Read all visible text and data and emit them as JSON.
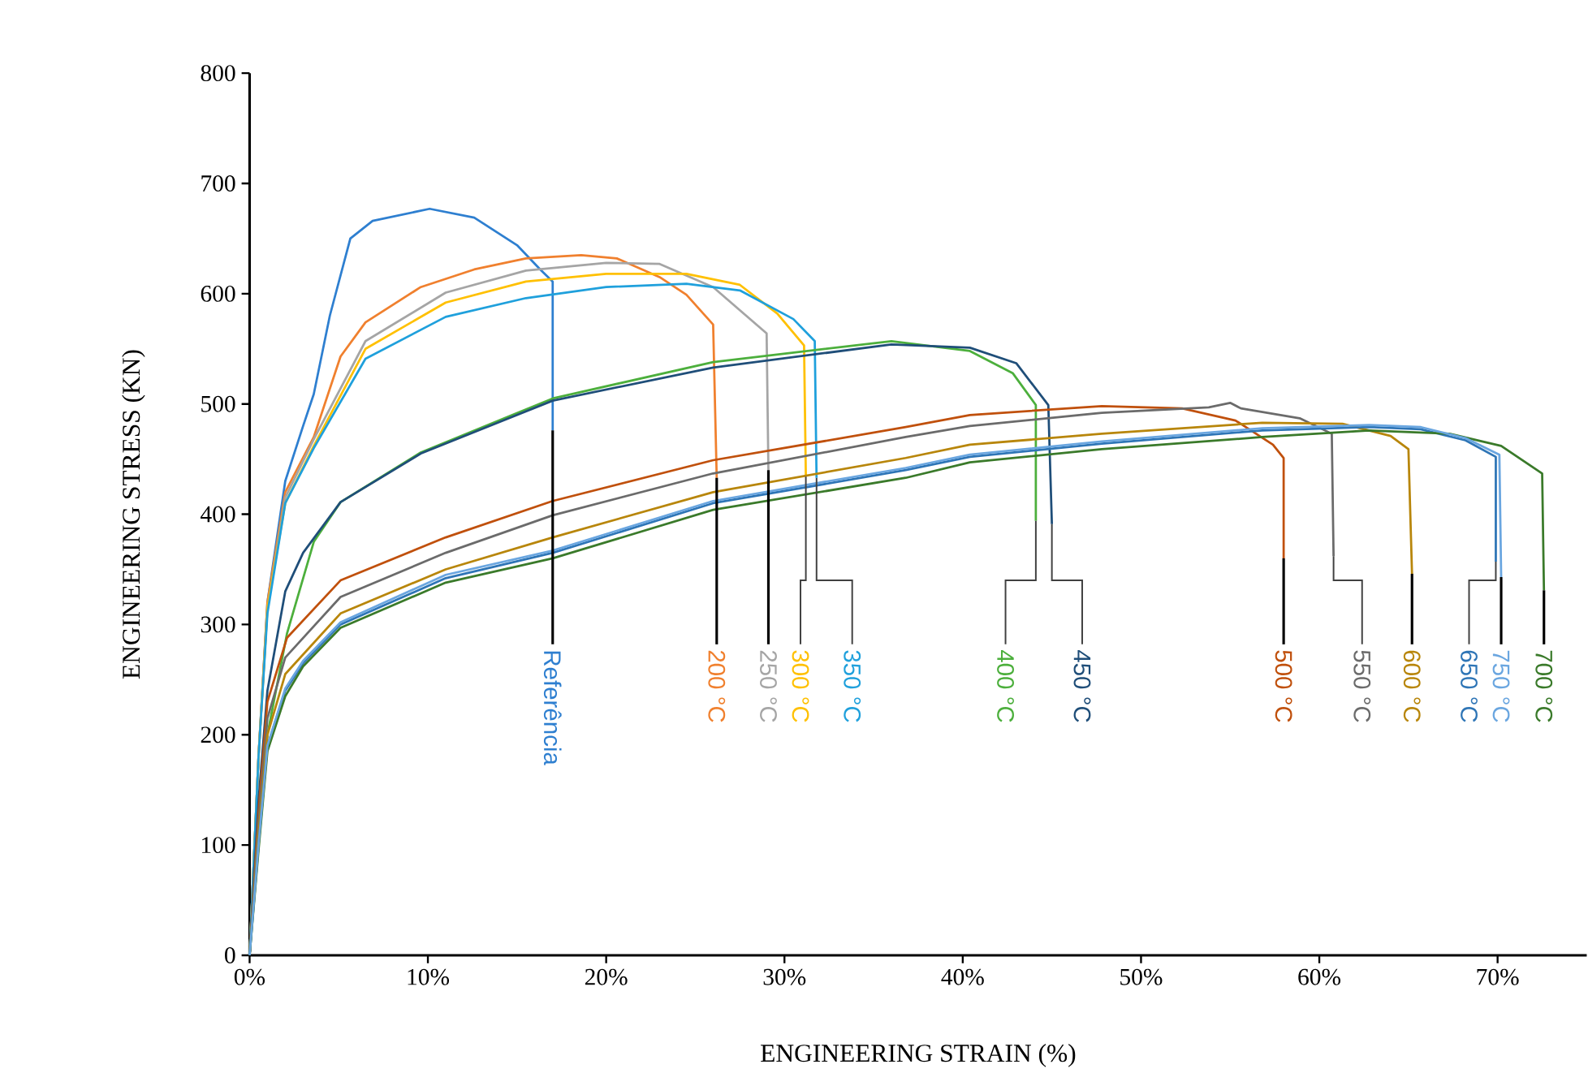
{
  "chart_data": {
    "type": "line",
    "xlabel": "ENGINEERING STRAIN (%)",
    "ylabel": "ENGINEERING STRESS (KN)",
    "xlim": [
      0,
      75
    ],
    "ylim": [
      0,
      800
    ],
    "xticks": [
      {
        "value": 0,
        "label": "0%"
      },
      {
        "value": 10,
        "label": "10%"
      },
      {
        "value": 20,
        "label": "20%"
      },
      {
        "value": 30,
        "label": "30%"
      },
      {
        "value": 40,
        "label": "40%"
      },
      {
        "value": 50,
        "label": "50%"
      },
      {
        "value": 60,
        "label": "60%"
      },
      {
        "value": 70,
        "label": "70%"
      }
    ],
    "yticks": [
      0,
      100,
      200,
      300,
      400,
      500,
      600,
      700,
      800
    ],
    "series": [
      {
        "name": "Referência",
        "color": "#2e7fd0",
        "x": [
          0,
          0.5,
          1,
          2,
          3,
          3.6,
          4.5,
          5.65,
          6.9,
          10.1,
          12.6,
          15,
          16.3,
          17,
          17
        ],
        "values": [
          0,
          180,
          320,
          430,
          480,
          509,
          580,
          650,
          666,
          677,
          669,
          644,
          622,
          611,
          476
        ]
      },
      {
        "name": "200 °C",
        "color": "#f0802e",
        "x": [
          0,
          0.5,
          1,
          2,
          3.6,
          5.1,
          6.5,
          9.6,
          12.6,
          15.5,
          18.6,
          20.6,
          23,
          24.5,
          26,
          26.2
        ],
        "values": [
          0,
          180,
          320,
          420,
          470,
          543,
          574,
          606,
          622,
          632,
          635,
          632,
          615,
          599,
          572,
          433
        ]
      },
      {
        "name": "250 °C",
        "color": "#a5a5a5",
        "x": [
          0,
          0.5,
          1,
          2,
          3.6,
          6.5,
          11,
          15.5,
          20,
          23,
          26,
          29,
          29.1
        ],
        "values": [
          0,
          180,
          315,
          415,
          468,
          557,
          601,
          621,
          628,
          627,
          606,
          564,
          440
        ]
      },
      {
        "name": "300 °C",
        "color": "#ffc000",
        "x": [
          0,
          0.5,
          1,
          2,
          3.6,
          6.5,
          11,
          15.5,
          20,
          24.5,
          27.5,
          29.6,
          31.1,
          31.2
        ],
        "values": [
          0,
          180,
          315,
          410,
          462,
          550,
          592,
          611,
          618,
          618,
          608,
          582,
          553,
          434
        ]
      },
      {
        "name": "350 °C",
        "color": "#1fa0dc",
        "x": [
          0,
          0.5,
          1,
          2,
          3.6,
          6.5,
          11,
          15.5,
          20,
          24.5,
          27.5,
          30.5,
          31.7,
          31.8
        ],
        "values": [
          0,
          180,
          310,
          410,
          460,
          541,
          579,
          596,
          606,
          609,
          603,
          577,
          557,
          433
        ]
      },
      {
        "name": "400 °C",
        "color": "#4caf3c",
        "x": [
          0,
          0.5,
          1,
          2.1,
          3.6,
          5.1,
          9.6,
          17,
          26,
          36,
          40.4,
          42.8,
          44.1,
          44.1
        ],
        "values": [
          0,
          120,
          200,
          292,
          375,
          411,
          456,
          505,
          538,
          557,
          548,
          528,
          499,
          394
        ]
      },
      {
        "name": "450 °C",
        "color": "#1f4e79",
        "x": [
          0,
          0.5,
          1,
          2,
          3,
          5.1,
          9.6,
          17,
          26,
          36,
          40.4,
          43,
          44.8,
          45
        ],
        "values": [
          0,
          140,
          240,
          330,
          365,
          411,
          455,
          503,
          533,
          554,
          551,
          537,
          499,
          391
        ]
      },
      {
        "name": "500 °C",
        "color": "#c0500c",
        "x": [
          0,
          0.5,
          1,
          2.1,
          5.1,
          11,
          17,
          26,
          36.8,
          40.4,
          47.8,
          52.3,
          55.3,
          57.4,
          58,
          58
        ],
        "values": [
          0,
          130,
          230,
          288,
          340,
          379,
          412,
          449,
          479,
          490,
          498,
          496,
          485,
          463,
          451,
          360
        ]
      },
      {
        "name": "550 °C",
        "color": "#6b6b6b",
        "x": [
          0,
          0.5,
          1,
          2,
          5.1,
          11,
          17,
          26,
          36.8,
          40.4,
          47.8,
          53.8,
          55,
          55.6,
          58.9,
          60.7,
          60.8
        ],
        "values": [
          0,
          120,
          215,
          270,
          325,
          365,
          399,
          437,
          470,
          480,
          492,
          497,
          501,
          496,
          487,
          473,
          362
        ]
      },
      {
        "name": "600 °C",
        "color": "#b8860b",
        "x": [
          0,
          0.5,
          1,
          2,
          5.1,
          11,
          17,
          26,
          36.8,
          40.4,
          47.8,
          56.8,
          61.3,
          64,
          65,
          65.2
        ],
        "values": [
          0,
          110,
          200,
          255,
          310,
          350,
          379,
          420,
          451,
          463,
          473,
          483,
          482,
          471,
          459,
          346
        ]
      },
      {
        "name": "650 °C",
        "color": "#2e75b6",
        "x": [
          0,
          0.5,
          1,
          2,
          3,
          5.1,
          11,
          17,
          26,
          36.8,
          40.4,
          47.8,
          56.8,
          62.8,
          65.7,
          68.2,
          69.9,
          69.9
        ],
        "values": [
          0,
          100,
          190,
          240,
          265,
          300,
          342,
          365,
          410,
          440,
          452,
          464,
          476,
          479,
          477,
          467,
          452,
          357
        ]
      },
      {
        "name": "700 °C",
        "color": "#3a7a2a",
        "x": [
          0,
          0.5,
          1,
          2,
          3,
          5.1,
          11,
          17,
          26,
          36.8,
          40.4,
          47.8,
          56.8,
          62.8,
          67.3,
          70.2,
          72.5,
          72.6
        ],
        "values": [
          0,
          95,
          185,
          235,
          262,
          297,
          338,
          360,
          404,
          433,
          447,
          459,
          470,
          476,
          473,
          462,
          437,
          331
        ]
      },
      {
        "name": "750 °C",
        "color": "#6aa6e0",
        "x": [
          0,
          0.5,
          1,
          2,
          3,
          5.1,
          11,
          17,
          26,
          36.8,
          40.4,
          47.8,
          56.8,
          62.8,
          65.7,
          68.2,
          70.1,
          70.2
        ],
        "values": [
          0,
          100,
          190,
          242,
          267,
          302,
          345,
          367,
          412,
          442,
          454,
          466,
          478,
          481,
          479,
          469,
          454,
          343
        ]
      }
    ]
  }
}
